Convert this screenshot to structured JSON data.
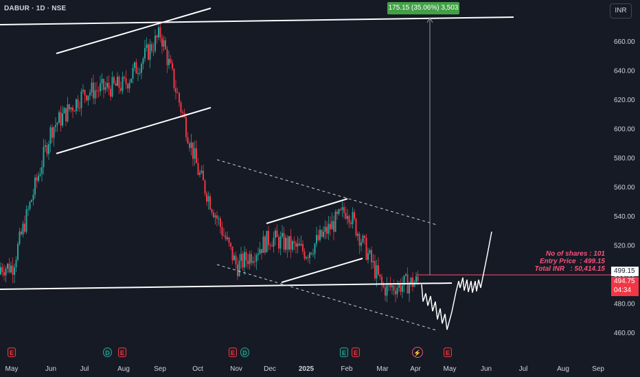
{
  "header": {
    "symbol": "DABUR · 1D · NSE",
    "currency": "INR"
  },
  "colors": {
    "background": "#161a25",
    "up": "#26a69a",
    "down": "#f23645",
    "drawing": "#ffffff",
    "note": "#f7527a",
    "measure": "#43a047"
  },
  "chart_data": {
    "type": "candlestick",
    "y_ticks": [
      "660.00",
      "640.00",
      "620.00",
      "600.00",
      "580.00",
      "560.00",
      "540.00",
      "520.00",
      "500.00",
      "480.00",
      "460.00"
    ],
    "x_ticks": [
      "May",
      "Jun",
      "Jul",
      "Aug",
      "Sep",
      "Oct",
      "Nov",
      "Dec",
      "2025",
      "Feb",
      "Mar",
      "Apr",
      "May",
      "Jun",
      "Jul",
      "Aug",
      "Sep"
    ],
    "ylim": [
      445,
      700
    ],
    "grid": false,
    "close_path_by_month": [
      {
        "month": "May",
        "close": 505
      },
      {
        "month": "Jun",
        "close": 600
      },
      {
        "month": "Jul",
        "close": 625
      },
      {
        "month": "Aug",
        "close": 630
      },
      {
        "month": "Sep",
        "close": 665
      },
      {
        "month": "Oct",
        "close": 570
      },
      {
        "month": "Nov",
        "close": 505
      },
      {
        "month": "Dec",
        "close": 525
      },
      {
        "month": "2025",
        "close": 515
      },
      {
        "month": "Feb",
        "close": 545
      },
      {
        "month": "Mar",
        "close": 490
      },
      {
        "month": "Apr",
        "close": 494.75
      }
    ],
    "last_price": "494.75",
    "countdown": "04:34",
    "entry_price_label": "499.15",
    "measure_label": "175.15 (35.06%) 3,503"
  },
  "position_note": {
    "shares": "No of shares : 101",
    "entry": "Entry Price  : 499.15",
    "total": "Total INR   : 50,414.15"
  },
  "events": [
    {
      "type": "E",
      "month": "May"
    },
    {
      "type": "D",
      "month": "Aug"
    },
    {
      "type": "E",
      "month": "Aug"
    },
    {
      "type": "E",
      "month": "Nov"
    },
    {
      "type": "D",
      "month": "Nov"
    },
    {
      "type": "E",
      "month": "Feb",
      "color": "green"
    },
    {
      "type": "E",
      "month": "Feb"
    },
    {
      "type": "⚡",
      "month": "Apr"
    },
    {
      "type": "E",
      "month": "May"
    }
  ]
}
